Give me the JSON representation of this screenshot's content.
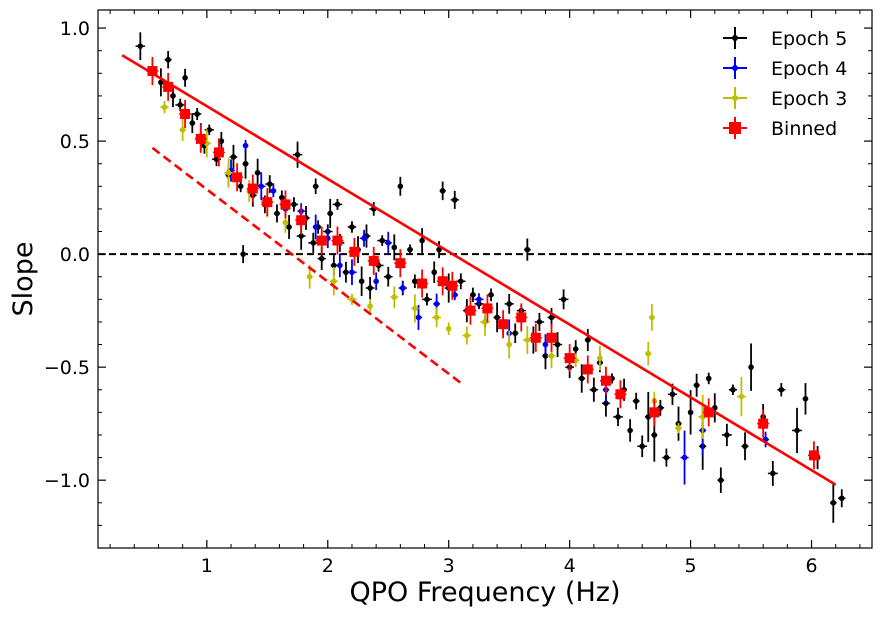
{
  "chart_data": {
    "type": "scatter",
    "title": "",
    "xlabel": "QPO Frequency (Hz)",
    "ylabel": "Slope",
    "xlim": [
      0.1,
      6.5
    ],
    "ylim": [
      -1.3,
      1.08
    ],
    "xticks": [
      {
        "value": 1,
        "label": "1"
      },
      {
        "value": 2,
        "label": "2"
      },
      {
        "value": 3,
        "label": "3"
      },
      {
        "value": 4,
        "label": "4"
      },
      {
        "value": 5,
        "label": "5"
      },
      {
        "value": 6,
        "label": "6"
      }
    ],
    "yticks": [
      {
        "value": 1.0,
        "label": "1.0"
      },
      {
        "value": 0.5,
        "label": "0.5"
      },
      {
        "value": 0.0,
        "label": "0.0"
      },
      {
        "value": -0.5,
        "label": "−0.5"
      },
      {
        "value": -1.0,
        "label": "−1.0"
      }
    ],
    "grid": false,
    "legend_position": "top-right",
    "legend": [
      {
        "key": "epoch5",
        "label": "Epoch 5",
        "color": "#000000",
        "marker": "errorbar"
      },
      {
        "key": "epoch4",
        "label": "Epoch 4",
        "color": "#0000ee",
        "marker": "errorbar"
      },
      {
        "key": "epoch3",
        "label": "Epoch 3",
        "color": "#bfbf00",
        "marker": "errorbar"
      },
      {
        "key": "binned",
        "label": "Binned",
        "color": "#ff0000",
        "marker": "square"
      }
    ],
    "reference_line": {
      "y": 0.0,
      "style": "dashed",
      "color": "#000000"
    },
    "fit_lines": [
      {
        "name": "full fit",
        "style": "solid",
        "color": "#ff0000",
        "x": [
          0.3,
          6.2
        ],
        "y": [
          0.88,
          -1.02
        ]
      },
      {
        "name": "low-frequency fit",
        "style": "dashed",
        "color": "#ff0000",
        "x": [
          0.55,
          3.1
        ],
        "y": [
          0.47,
          -0.57
        ]
      }
    ],
    "binned": [
      [
        0.55,
        0.81
      ],
      [
        0.68,
        0.74
      ],
      [
        0.82,
        0.62
      ],
      [
        0.95,
        0.51
      ],
      [
        1.1,
        0.45
      ],
      [
        1.25,
        0.34
      ],
      [
        1.38,
        0.29
      ],
      [
        1.5,
        0.23
      ],
      [
        1.65,
        0.22
      ],
      [
        1.78,
        0.15
      ],
      [
        1.95,
        0.06
      ],
      [
        2.08,
        0.06
      ],
      [
        2.22,
        0.01
      ],
      [
        2.38,
        -0.03
      ],
      [
        2.6,
        -0.04
      ],
      [
        2.78,
        -0.13
      ],
      [
        2.95,
        -0.12
      ],
      [
        3.03,
        -0.14
      ],
      [
        3.18,
        -0.25
      ],
      [
        3.32,
        -0.24
      ],
      [
        3.45,
        -0.31
      ],
      [
        3.6,
        -0.28
      ],
      [
        3.72,
        -0.37
      ],
      [
        3.85,
        -0.37
      ],
      [
        4.0,
        -0.46
      ],
      [
        4.15,
        -0.51
      ],
      [
        4.3,
        -0.56
      ],
      [
        4.42,
        -0.62
      ],
      [
        4.7,
        -0.7
      ],
      [
        5.15,
        -0.7
      ],
      [
        5.6,
        -0.75
      ],
      [
        6.02,
        -0.89
      ]
    ],
    "epoch4": [
      [
        0.95,
        0.52
      ],
      [
        1.1,
        0.46
      ],
      [
        1.2,
        0.37
      ],
      [
        1.32,
        0.48
      ],
      [
        1.45,
        0.3
      ],
      [
        1.55,
        0.28
      ],
      [
        1.65,
        0.2
      ],
      [
        1.78,
        0.19
      ],
      [
        1.9,
        0.12
      ],
      [
        2.0,
        0.07
      ],
      [
        2.1,
        -0.05
      ],
      [
        2.2,
        -0.08
      ],
      [
        2.3,
        0.07
      ],
      [
        2.4,
        -0.12
      ],
      [
        2.5,
        0.05
      ],
      [
        2.62,
        -0.15
      ],
      [
        2.75,
        -0.28
      ],
      [
        2.9,
        -0.22
      ],
      [
        3.05,
        -0.18
      ],
      [
        3.25,
        -0.2
      ],
      [
        3.5,
        -0.35
      ],
      [
        3.8,
        -0.4
      ],
      [
        4.3,
        -0.6
      ],
      [
        4.95,
        -0.9
      ],
      [
        5.1,
        -0.78
      ],
      [
        5.62,
        -0.82
      ]
    ],
    "epoch3": [
      [
        0.65,
        0.65
      ],
      [
        0.8,
        0.55
      ],
      [
        1.0,
        0.49
      ],
      [
        1.18,
        0.36
      ],
      [
        1.35,
        0.28
      ],
      [
        1.5,
        0.22
      ],
      [
        1.65,
        0.14
      ],
      [
        1.85,
        -0.1
      ],
      [
        2.05,
        -0.12
      ],
      [
        2.2,
        -0.2
      ],
      [
        2.35,
        -0.23
      ],
      [
        2.55,
        -0.19
      ],
      [
        2.72,
        -0.24
      ],
      [
        2.9,
        -0.28
      ],
      [
        3.0,
        -0.33
      ],
      [
        3.15,
        -0.36
      ],
      [
        3.3,
        -0.3
      ],
      [
        3.5,
        -0.4
      ],
      [
        3.65,
        -0.38
      ],
      [
        3.85,
        -0.45
      ],
      [
        4.05,
        -0.47
      ],
      [
        4.25,
        -0.46
      ],
      [
        4.65,
        -0.44
      ],
      [
        4.68,
        -0.28
      ],
      [
        4.7,
        -0.65
      ],
      [
        4.9,
        -0.77
      ],
      [
        5.1,
        -0.72
      ],
      [
        5.42,
        -0.63
      ]
    ],
    "epoch5": [
      [
        0.45,
        0.92
      ],
      [
        0.55,
        0.8
      ],
      [
        0.62,
        0.76
      ],
      [
        0.68,
        0.86
      ],
      [
        0.72,
        0.7
      ],
      [
        0.78,
        0.66
      ],
      [
        0.82,
        0.78
      ],
      [
        0.88,
        0.58
      ],
      [
        0.92,
        0.62
      ],
      [
        0.98,
        0.48
      ],
      [
        1.02,
        0.55
      ],
      [
        1.08,
        0.42
      ],
      [
        1.12,
        0.5
      ],
      [
        1.18,
        0.35
      ],
      [
        1.22,
        0.43
      ],
      [
        1.28,
        0.3
      ],
      [
        1.3,
        0.0
      ],
      [
        1.32,
        0.4
      ],
      [
        1.38,
        0.26
      ],
      [
        1.42,
        0.36
      ],
      [
        1.48,
        0.22
      ],
      [
        1.52,
        0.31
      ],
      [
        1.58,
        0.18
      ],
      [
        1.62,
        0.25
      ],
      [
        1.68,
        0.12
      ],
      [
        1.72,
        0.22
      ],
      [
        1.75,
        0.44
      ],
      [
        1.78,
        0.08
      ],
      [
        1.82,
        0.16
      ],
      [
        1.88,
        0.05
      ],
      [
        1.9,
        0.3
      ],
      [
        1.92,
        0.12
      ],
      [
        1.95,
        -0.02
      ],
      [
        2.0,
        0.1
      ],
      [
        2.02,
        0.18
      ],
      [
        2.05,
        -0.05
      ],
      [
        2.08,
        0.22
      ],
      [
        2.1,
        0.05
      ],
      [
        2.15,
        -0.08
      ],
      [
        2.2,
        0.12
      ],
      [
        2.25,
        0.02
      ],
      [
        2.28,
        -0.12
      ],
      [
        2.32,
        0.08
      ],
      [
        2.35,
        -0.15
      ],
      [
        2.38,
        0.2
      ],
      [
        2.42,
        -0.05
      ],
      [
        2.45,
        0.06
      ],
      [
        2.5,
        -0.1
      ],
      [
        2.55,
        0.03
      ],
      [
        2.6,
        0.3
      ],
      [
        2.62,
        -0.15
      ],
      [
        2.68,
        0.02
      ],
      [
        2.72,
        -0.12
      ],
      [
        2.78,
        0.06
      ],
      [
        2.82,
        -0.2
      ],
      [
        2.88,
        -0.08
      ],
      [
        2.92,
        0.02
      ],
      [
        2.95,
        0.28
      ],
      [
        3.0,
        -0.15
      ],
      [
        3.05,
        0.24
      ],
      [
        3.1,
        -0.12
      ],
      [
        3.15,
        -0.25
      ],
      [
        3.2,
        -0.18
      ],
      [
        3.25,
        -0.22
      ],
      [
        3.3,
        -0.3
      ],
      [
        3.35,
        -0.18
      ],
      [
        3.4,
        -0.28
      ],
      [
        3.45,
        -0.32
      ],
      [
        3.5,
        -0.22
      ],
      [
        3.55,
        -0.35
      ],
      [
        3.6,
        -0.25
      ],
      [
        3.65,
        0.02
      ],
      [
        3.7,
        -0.38
      ],
      [
        3.75,
        -0.3
      ],
      [
        3.8,
        -0.45
      ],
      [
        3.85,
        -0.28
      ],
      [
        3.9,
        -0.4
      ],
      [
        3.95,
        -0.2
      ],
      [
        4.0,
        -0.5
      ],
      [
        4.05,
        -0.42
      ],
      [
        4.1,
        -0.55
      ],
      [
        4.15,
        -0.38
      ],
      [
        4.2,
        -0.6
      ],
      [
        4.25,
        -0.48
      ],
      [
        4.3,
        -0.66
      ],
      [
        4.35,
        -0.55
      ],
      [
        4.4,
        -0.72
      ],
      [
        4.45,
        -0.6
      ],
      [
        4.5,
        -0.78
      ],
      [
        4.55,
        -0.65
      ],
      [
        4.6,
        -0.85
      ],
      [
        4.65,
        -0.72
      ],
      [
        4.7,
        -0.8
      ],
      [
        4.75,
        -0.68
      ],
      [
        4.8,
        -0.9
      ],
      [
        4.85,
        -0.62
      ],
      [
        4.9,
        -0.75
      ],
      [
        5.0,
        -0.7
      ],
      [
        5.05,
        -0.58
      ],
      [
        5.1,
        -0.85
      ],
      [
        5.15,
        -0.55
      ],
      [
        5.2,
        -0.68
      ],
      [
        5.25,
        -1.0
      ],
      [
        5.3,
        -0.8
      ],
      [
        5.35,
        -0.6
      ],
      [
        5.45,
        -0.85
      ],
      [
        5.5,
        -0.5
      ],
      [
        5.6,
        -0.72
      ],
      [
        5.68,
        -0.97
      ],
      [
        5.75,
        -0.6
      ],
      [
        5.88,
        -0.78
      ],
      [
        5.95,
        -0.64
      ],
      [
        6.05,
        -0.9
      ],
      [
        6.18,
        -1.1
      ],
      [
        6.25,
        -1.08
      ]
    ]
  }
}
